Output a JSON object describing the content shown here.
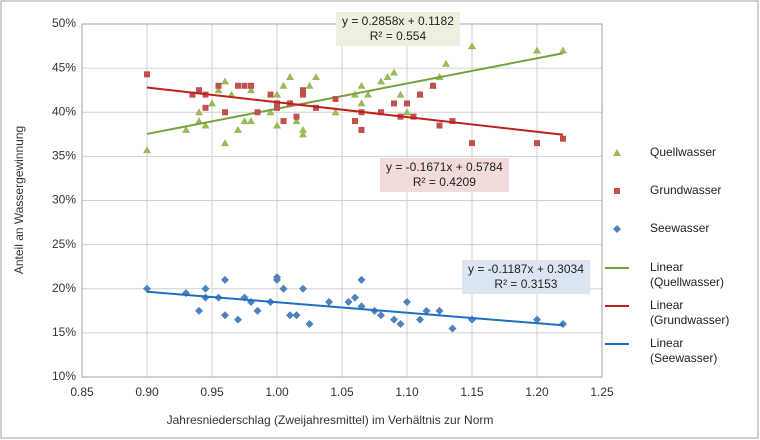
{
  "chart_data": {
    "type": "scatter",
    "x_label": "Jahresniederschlag (Zweijahresmittel) im Verhältnis zur Norm",
    "y_label": "Anteil an Wassergewinnung",
    "xlim": [
      0.85,
      1.25
    ],
    "xticks": [
      0.85,
      {
        "value": 0.9,
        "label": "0.90"
      },
      0.95,
      {
        "value": 1,
        "label": "1.00"
      },
      1.05,
      {
        "value": 1.1,
        "label": "1.10"
      },
      1.15,
      {
        "value": 1.2,
        "label": "1.20"
      },
      1.25
    ],
    "ylim": [
      0.1,
      0.5
    ],
    "yticks": [
      {
        "value": 0.1,
        "label": "10%"
      },
      {
        "value": 0.15,
        "label": "15%"
      },
      {
        "value": 0.2,
        "label": "20%"
      },
      {
        "value": 0.25,
        "label": "25%"
      },
      {
        "value": 0.3,
        "label": "30%"
      },
      {
        "value": 0.35,
        "label": "35%"
      },
      {
        "value": 0.4,
        "label": "40%"
      },
      {
        "value": 0.45,
        "label": "45%"
      },
      {
        "value": 0.5,
        "label": "50%"
      }
    ],
    "grid": true,
    "legend": "right",
    "series": [
      {
        "name": "Quellwasser",
        "color": "#9bbb59",
        "marker": "triangle",
        "x": [
          0.9,
          0.93,
          0.94,
          0.945,
          0.94,
          0.95,
          0.955,
          0.96,
          0.96,
          0.965,
          0.97,
          0.975,
          0.98,
          0.98,
          0.995,
          1.0,
          1.0,
          1.005,
          1.01,
          1.01,
          1.015,
          1.02,
          1.02,
          1.025,
          1.03,
          1.045,
          1.06,
          1.065,
          1.065,
          1.07,
          1.08,
          1.085,
          1.09,
          1.095,
          1.1,
          1.11,
          1.12,
          1.125,
          1.13,
          1.15,
          1.2,
          1.22
        ],
        "values": [
          0.357,
          0.38,
          0.4,
          0.385,
          0.39,
          0.41,
          0.425,
          0.435,
          0.365,
          0.42,
          0.38,
          0.39,
          0.39,
          0.425,
          0.4,
          0.385,
          0.42,
          0.43,
          0.44,
          0.41,
          0.39,
          0.38,
          0.375,
          0.43,
          0.44,
          0.4,
          0.42,
          0.41,
          0.43,
          0.42,
          0.435,
          0.44,
          0.445,
          0.42,
          0.4,
          0.42,
          0.43,
          0.44,
          0.455,
          0.475,
          0.47,
          0.47
        ],
        "trendline": {
          "name": "Linear (Quellwasser)",
          "color": "#77a13c",
          "slope": 0.2858,
          "intercept": 0.1182,
          "equation": "y = 0.2858x + 0.1182",
          "r2": "R² = 0.554",
          "box": "#ebf1de"
        }
      },
      {
        "name": "Grundwasser",
        "color": "#c0504d",
        "marker": "square",
        "x": [
          0.9,
          0.935,
          0.94,
          0.945,
          0.945,
          0.955,
          0.96,
          0.97,
          0.975,
          0.98,
          0.985,
          0.995,
          1.0,
          1.0,
          1.005,
          1.01,
          1.015,
          1.02,
          1.02,
          1.03,
          1.045,
          1.06,
          1.065,
          1.065,
          1.08,
          1.09,
          1.095,
          1.1,
          1.105,
          1.11,
          1.12,
          1.125,
          1.135,
          1.15,
          1.2,
          1.22
        ],
        "values": [
          0.443,
          0.42,
          0.425,
          0.405,
          0.42,
          0.43,
          0.4,
          0.43,
          0.43,
          0.43,
          0.4,
          0.42,
          0.41,
          0.405,
          0.39,
          0.41,
          0.395,
          0.42,
          0.425,
          0.405,
          0.415,
          0.39,
          0.38,
          0.4,
          0.4,
          0.41,
          0.395,
          0.41,
          0.395,
          0.42,
          0.43,
          0.385,
          0.39,
          0.365,
          0.365,
          0.37
        ],
        "trendline": {
          "name": "Linear (Grundwasser)",
          "color": "#c0201c",
          "slope": -0.1671,
          "intercept": 0.5784,
          "equation": "y = -0.1671x + 0.5784",
          "r2": "R² = 0.4209",
          "box": "#f2dcdb"
        }
      },
      {
        "name": "Seewasser",
        "color": "#4f81bd",
        "marker": "diamond",
        "x": [
          0.9,
          0.93,
          0.94,
          0.945,
          0.945,
          0.955,
          0.96,
          0.96,
          0.97,
          0.975,
          0.98,
          0.985,
          0.995,
          1.0,
          1.0,
          1.005,
          1.01,
          1.015,
          1.02,
          1.025,
          1.04,
          1.055,
          1.06,
          1.065,
          1.065,
          1.075,
          1.08,
          1.09,
          1.095,
          1.1,
          1.11,
          1.115,
          1.125,
          1.135,
          1.15,
          1.2,
          1.22
        ],
        "values": [
          0.2,
          0.195,
          0.175,
          0.2,
          0.19,
          0.19,
          0.21,
          0.17,
          0.165,
          0.19,
          0.185,
          0.175,
          0.185,
          0.213,
          0.21,
          0.2,
          0.17,
          0.17,
          0.2,
          0.16,
          0.185,
          0.185,
          0.19,
          0.21,
          0.18,
          0.175,
          0.17,
          0.165,
          0.16,
          0.185,
          0.165,
          0.175,
          0.175,
          0.155,
          0.165,
          0.165,
          0.16
        ],
        "trendline": {
          "name": "Linear (Seewasser)",
          "color": "#1f6fc0",
          "slope": -0.1187,
          "intercept": 0.3034,
          "equation": "y = -0.1187x + 0.3034",
          "r2": "R² = 0.3153",
          "box": "#dce6f2"
        }
      }
    ]
  }
}
